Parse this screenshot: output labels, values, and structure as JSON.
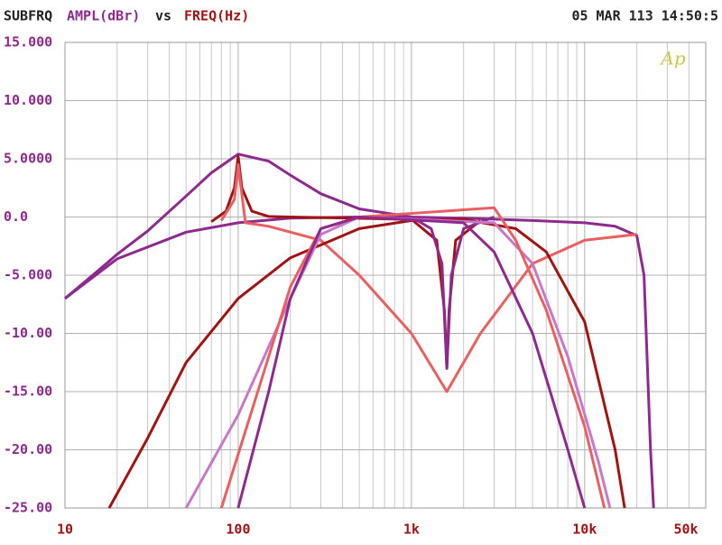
{
  "chart_data": {
    "type": "line",
    "title": "SUBFRQ",
    "y_label": "AMPL(dBr)",
    "vs": "vs",
    "x_label": "FREQ(Hz)",
    "timestamp": "05 MAR 113 14:50:5",
    "logo": "Ap",
    "x_log": true,
    "grid": true,
    "xlim": [
      10,
      50000
    ],
    "ylim": [
      -25,
      15
    ],
    "xticks": [
      10,
      100,
      {
        "value": 1000,
        "label": "1k"
      },
      {
        "value": 10000,
        "label": "10k"
      },
      {
        "value": 50000,
        "label": "50k"
      }
    ],
    "yticks": [
      {
        "value": 15,
        "label": "15.000"
      },
      {
        "value": 10,
        "label": "10.000"
      },
      {
        "value": 5,
        "label": "5.0000"
      },
      {
        "value": 0,
        "label": "0.0"
      },
      {
        "value": -5,
        "label": "-5.000"
      },
      {
        "value": -10,
        "label": "-10.00"
      },
      {
        "value": -15,
        "label": "-15.00"
      },
      {
        "value": -20,
        "label": "-20.00"
      },
      {
        "value": -25,
        "label": "-25.00"
      }
    ],
    "series": [
      {
        "color": "#8e2a8e",
        "x": [
          10,
          15,
          20,
          30,
          50,
          70,
          100,
          150,
          200,
          300,
          500,
          1000,
          2000,
          5000,
          10000,
          15000,
          20000,
          22000,
          24000,
          25000
        ],
        "values": [
          -7,
          -4.8,
          -3.2,
          -1.2,
          1.8,
          3.8,
          5.4,
          4.8,
          3.6,
          2,
          0.7,
          0,
          -0.1,
          -0.3,
          -0.5,
          -0.8,
          -1.6,
          -5,
          -20,
          -25
        ]
      },
      {
        "color": "#8e2a8e",
        "x": [
          10,
          20,
          50,
          100,
          200,
          500,
          1000
        ],
        "values": [
          -7,
          -3.6,
          -1.3,
          -0.5,
          -0.1,
          0,
          0
        ]
      },
      {
        "color": "#a01414",
        "x": [
          70,
          85,
          95,
          100,
          105,
          120,
          150,
          200
        ],
        "values": [
          -0.4,
          0.5,
          2.5,
          5.2,
          2.5,
          0.5,
          0.05,
          0
        ]
      },
      {
        "color": "#e86060",
        "x": [
          80,
          95,
          100,
          110,
          150,
          300,
          500,
          1000,
          1600,
          2500,
          5000,
          10000,
          20000
        ],
        "values": [
          -0.3,
          1.5,
          4.5,
          -0.5,
          -0.8,
          -2,
          -5,
          -10,
          -15,
          -10,
          -4,
          -2,
          -1.5
        ]
      },
      {
        "color": "#a01414",
        "x": [
          200,
          1000,
          1400,
          1550,
          1600,
          1650,
          1800,
          2500
        ],
        "values": [
          0,
          -0.2,
          -2,
          -8,
          -13,
          -8,
          -2,
          -0.3
        ]
      },
      {
        "color": "#8e2a8e",
        "x": [
          1000,
          1300,
          1500,
          1600,
          1700,
          2000,
          3000
        ],
        "values": [
          0,
          -1,
          -4,
          -13,
          -5,
          -1,
          0
        ]
      },
      {
        "color": "#a01414",
        "x": [
          18,
          30,
          50,
          100,
          200,
          500,
          1000,
          2000,
          4000,
          6000,
          10000,
          15000,
          17000
        ],
        "values": [
          -25,
          -19,
          -12.5,
          -7,
          -3.5,
          -1,
          -0.3,
          -0.2,
          -1,
          -3,
          -9,
          -20,
          -25
        ]
      },
      {
        "color": "#c878c8",
        "x": [
          50,
          100,
          200,
          300,
          500,
          3000,
          5000,
          8000,
          12000,
          14000
        ],
        "values": [
          -25,
          -17,
          -7,
          -1.5,
          0,
          -0.5,
          -4,
          -12,
          -21,
          -25
        ]
      },
      {
        "color": "#e86060",
        "x": [
          80,
          150,
          200,
          300,
          500,
          3000,
          4000,
          6000,
          10000,
          13000
        ],
        "values": [
          -25,
          -12,
          -6,
          -1,
          0,
          0.8,
          -2,
          -8,
          -18,
          -25
        ]
      },
      {
        "color": "#8e2a8e",
        "x": [
          100,
          150,
          200,
          300,
          500,
          2000,
          3000,
          5000,
          8000,
          10000
        ],
        "values": [
          -25,
          -15,
          -7,
          -1,
          0,
          -0.5,
          -3,
          -10,
          -20,
          -25
        ]
      }
    ]
  }
}
